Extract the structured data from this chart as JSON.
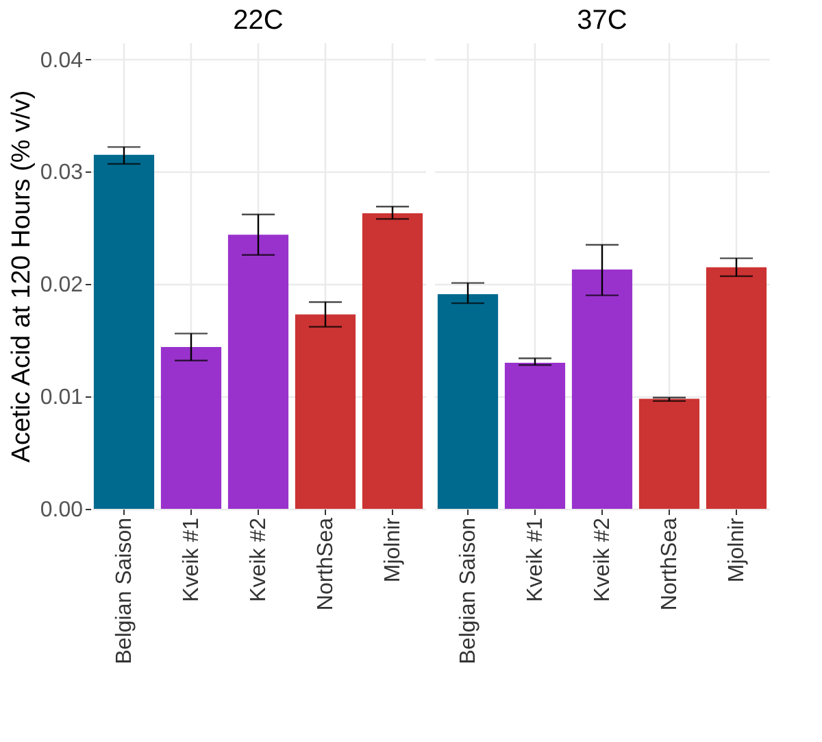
{
  "chart_data": [
    {
      "type": "bar",
      "title": "22C",
      "ylabel": "Acetic Acid at 120 Hours (% v/v)",
      "categories": [
        "Belgian Saison",
        "Kveik #1",
        "Kveik #2",
        "NorthSea",
        "Mjolnir"
      ],
      "values": [
        0.0315,
        0.0144,
        0.0244,
        0.0173,
        0.0263
      ],
      "colors": [
        "#006a8e",
        "#9932cc",
        "#9932cc",
        "#cc3333",
        "#cc3333"
      ],
      "errors": [
        [
          0.0307,
          0.0322
        ],
        [
          0.0132,
          0.0156
        ],
        [
          0.0226,
          0.0262
        ],
        [
          0.0162,
          0.0184
        ],
        [
          0.0258,
          0.0269
        ]
      ],
      "ylim": [
        0,
        0.0415
      ],
      "yticks": [
        {
          "value": 0,
          "label": "0.00"
        },
        {
          "value": 0.01,
          "label": "0.01"
        },
        {
          "value": 0.02,
          "label": "0.02"
        },
        {
          "value": 0.03,
          "label": "0.03"
        },
        {
          "value": 0.04,
          "label": "0.04"
        }
      ],
      "grid": true
    },
    {
      "type": "bar",
      "title": "37C",
      "categories": [
        "Belgian Saison",
        "Kveik #1",
        "Kveik #2",
        "NorthSea",
        "Mjolnir"
      ],
      "values": [
        0.0191,
        0.013,
        0.0213,
        0.0098,
        0.0215
      ],
      "colors": [
        "#006a8e",
        "#9932cc",
        "#9932cc",
        "#cc3333",
        "#cc3333"
      ],
      "errors": [
        [
          0.0183,
          0.0201
        ],
        [
          0.0128,
          0.0134
        ],
        [
          0.019,
          0.0235
        ],
        [
          0.0096,
          0.0099
        ],
        [
          0.0207,
          0.0223
        ]
      ],
      "ylim": [
        0,
        0.0415
      ],
      "yticks": [
        0,
        0.01,
        0.02,
        0.03,
        0.04
      ],
      "grid": true,
      "tick_labels": "x"
    }
  ]
}
